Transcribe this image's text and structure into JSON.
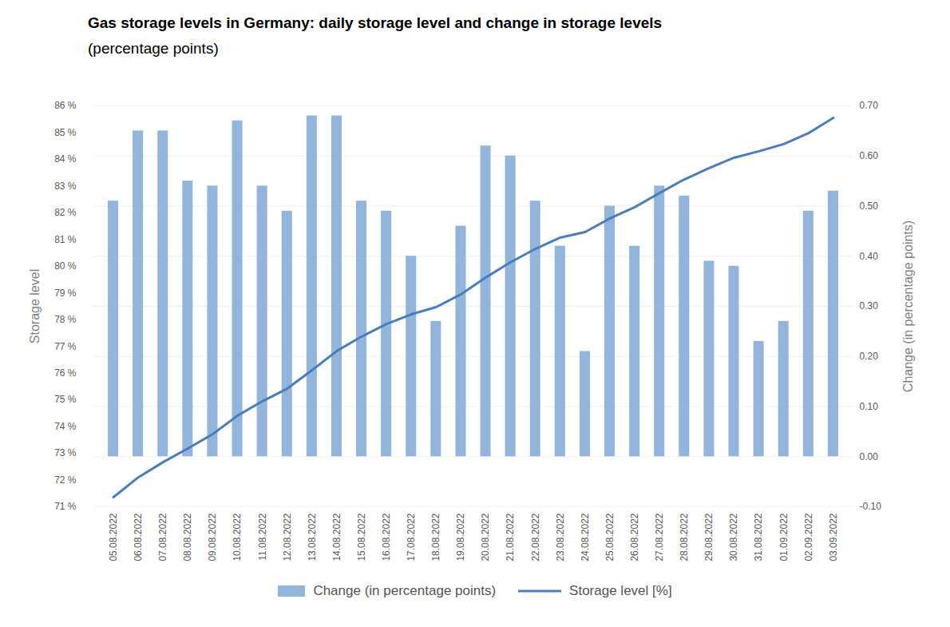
{
  "chart_data": {
    "type": "bar",
    "title": "Gas storage levels in Germany: daily storage level and change in storage levels",
    "subtitle": "(percentage points)",
    "ylabel": "Storage level",
    "y2label": "Change (in percentage points)",
    "categories": [
      "05.08.2022",
      "06.08.2022",
      "07.08.2022",
      "08.08.2022",
      "09.08.2022",
      "10.08.2022",
      "11.08.2022",
      "12.08.2022",
      "13.08.2022",
      "14.08.2022",
      "15.08.2022",
      "16.08.2022",
      "17.08.2022",
      "18.08.2022",
      "19.08.2022",
      "20.08.2022",
      "21.08.2022",
      "22.08.2022",
      "23.08.2022",
      "24.08.2022",
      "25.08.2022",
      "26.08.2022",
      "27.08.2022",
      "28.08.2022",
      "29.08.2022",
      "30.08.2022",
      "31.08.2022",
      "01.09.2022",
      "02.09.2022",
      "03.09.2022"
    ],
    "series": [
      {
        "name": "Change (in percentage points)",
        "type": "bar",
        "axis": "y2",
        "color": "#93b5dc",
        "values": [
          0.51,
          0.65,
          0.65,
          0.55,
          0.54,
          0.67,
          0.54,
          0.49,
          0.68,
          0.68,
          0.51,
          0.49,
          0.4,
          0.27,
          0.46,
          0.62,
          0.6,
          0.51,
          0.42,
          0.21,
          0.5,
          0.42,
          0.54,
          0.52,
          0.39,
          0.38,
          0.23,
          0.27,
          0.49,
          0.53
        ]
      },
      {
        "name": "Storage level [%]",
        "type": "line",
        "color": "#4a7ebb",
        "values": [
          71.36,
          72.1,
          72.67,
          73.18,
          73.72,
          74.41,
          74.95,
          75.42,
          76.11,
          76.83,
          77.37,
          77.84,
          78.2,
          78.47,
          78.95,
          79.58,
          80.15,
          80.65,
          81.07,
          81.28,
          81.79,
          82.21,
          82.74,
          83.25,
          83.67,
          84.06,
          84.3,
          84.57,
          84.98,
          85.55
        ]
      }
    ],
    "ylim": [
      71,
      86
    ],
    "yticks": [
      {
        "value": 71,
        "label": "71 %"
      },
      {
        "value": 72,
        "label": "72 %"
      },
      {
        "value": 73,
        "label": "73 %"
      },
      {
        "value": 74,
        "label": "74 %"
      },
      {
        "value": 75,
        "label": "75 %"
      },
      {
        "value": 76,
        "label": "76 %"
      },
      {
        "value": 77,
        "label": "77 %"
      },
      {
        "value": 78,
        "label": "78 %"
      },
      {
        "value": 79,
        "label": "79 %"
      },
      {
        "value": 80,
        "label": "80 %"
      },
      {
        "value": 81,
        "label": "81 %"
      },
      {
        "value": 82,
        "label": "82 %"
      },
      {
        "value": 83,
        "label": "83 %"
      },
      {
        "value": 84,
        "label": "84 %"
      },
      {
        "value": 85,
        "label": "85 %"
      },
      {
        "value": 86,
        "label": "86 %"
      }
    ],
    "y2lim": [
      -0.1,
      0.7
    ],
    "y2ticks": [
      {
        "value": -0.1,
        "label": "-0.10"
      },
      {
        "value": 0,
        "label": "0.00"
      },
      {
        "value": 0.1,
        "label": "0.10"
      },
      {
        "value": 0.2,
        "label": "0.20"
      },
      {
        "value": 0.3,
        "label": "0.30"
      },
      {
        "value": 0.4,
        "label": "0.40"
      },
      {
        "value": 0.5,
        "label": "0.50"
      },
      {
        "value": 0.6,
        "label": "0.60"
      },
      {
        "value": 0.7,
        "label": "0.70"
      }
    ],
    "grid": true,
    "legend": "bottom"
  }
}
